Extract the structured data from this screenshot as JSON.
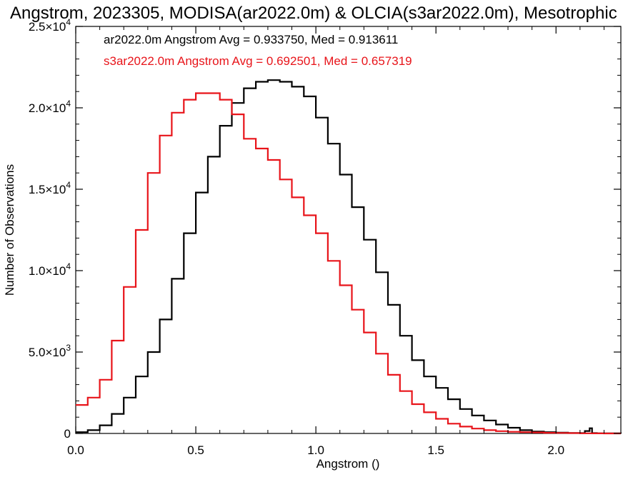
{
  "chart_data": {
    "type": "line",
    "title": "Angstrom, 2023305, MODISA(ar2022.0m) & OLCIA(s3ar2022.0m), Mesotrophic",
    "xlabel": "Angstrom ()",
    "ylabel": "Number of Observations",
    "xlim": [
      0.0,
      2.27
    ],
    "ylim": [
      0,
      25000
    ],
    "grid": false,
    "x_ticks": [
      {
        "value": 0.0,
        "label": "0.0"
      },
      {
        "value": 0.5,
        "label": "0.5"
      },
      {
        "value": 1.0,
        "label": "1.0"
      },
      {
        "value": 1.5,
        "label": "1.5"
      },
      {
        "value": 2.0,
        "label": "2.0"
      }
    ],
    "y_ticks": [
      {
        "value": 0,
        "mant": "0",
        "exp": ""
      },
      {
        "value": 5000,
        "mant": "5.0×10",
        "exp": "3"
      },
      {
        "value": 10000,
        "mant": "1.0×10",
        "exp": "4"
      },
      {
        "value": 15000,
        "mant": "1.5×10",
        "exp": "4"
      },
      {
        "value": 20000,
        "mant": "2.0×10",
        "exp": "4"
      },
      {
        "value": 25000,
        "mant": "2.5×10",
        "exp": "4"
      }
    ],
    "legend": [
      {
        "text": "ar2022.0m Angstrom Avg = 0.933750, Med = 0.913611",
        "color": "#000000"
      },
      {
        "text": "s3ar2022.0m Angstrom Avg = 0.692501, Med = 0.657319",
        "color": "#e8141a"
      }
    ],
    "series": [
      {
        "color": "#000000",
        "x": [
          0.0,
          0.05,
          0.1,
          0.15,
          0.2,
          0.25,
          0.3,
          0.35,
          0.4,
          0.45,
          0.5,
          0.55,
          0.6,
          0.65,
          0.7,
          0.75,
          0.8,
          0.85,
          0.9,
          0.95,
          1.0,
          1.05,
          1.1,
          1.15,
          1.2,
          1.25,
          1.3,
          1.35,
          1.4,
          1.45,
          1.5,
          1.55,
          1.6,
          1.65,
          1.7,
          1.75,
          1.8,
          1.85,
          1.9,
          1.95,
          2.0,
          2.05,
          2.1,
          2.12,
          2.14,
          2.15,
          2.17,
          2.2,
          2.27
        ],
        "y": [
          80,
          200,
          500,
          1200,
          2200,
          3500,
          5000,
          7000,
          9500,
          12300,
          14800,
          17000,
          18900,
          20300,
          21200,
          21600,
          21700,
          21600,
          21300,
          20700,
          19400,
          17800,
          15900,
          13900,
          11900,
          9900,
          7900,
          6000,
          4500,
          3500,
          2800,
          2100,
          1500,
          1100,
          800,
          550,
          350,
          200,
          120,
          80,
          50,
          30,
          20,
          150,
          320,
          20,
          10,
          5,
          0
        ]
      },
      {
        "color": "#e8141a",
        "x": [
          0.0,
          0.05,
          0.1,
          0.15,
          0.2,
          0.25,
          0.3,
          0.35,
          0.4,
          0.45,
          0.5,
          0.55,
          0.6,
          0.65,
          0.7,
          0.75,
          0.8,
          0.85,
          0.9,
          0.95,
          1.0,
          1.05,
          1.1,
          1.15,
          1.2,
          1.25,
          1.3,
          1.35,
          1.4,
          1.45,
          1.5,
          1.55,
          1.6,
          1.65,
          1.7,
          1.75,
          1.8,
          1.85,
          1.9,
          1.95,
          2.0,
          2.05,
          2.1,
          2.15,
          2.2,
          2.27
        ],
        "y": [
          1750,
          2200,
          3300,
          5700,
          9000,
          12500,
          16000,
          18300,
          19700,
          20500,
          20900,
          20900,
          20500,
          19600,
          18100,
          17500,
          16800,
          15600,
          14500,
          13400,
          12300,
          10600,
          9100,
          7600,
          6200,
          4900,
          3600,
          2600,
          1800,
          1300,
          900,
          600,
          420,
          300,
          200,
          140,
          100,
          80,
          60,
          40,
          30,
          20,
          10,
          5,
          0,
          0
        ]
      }
    ]
  }
}
